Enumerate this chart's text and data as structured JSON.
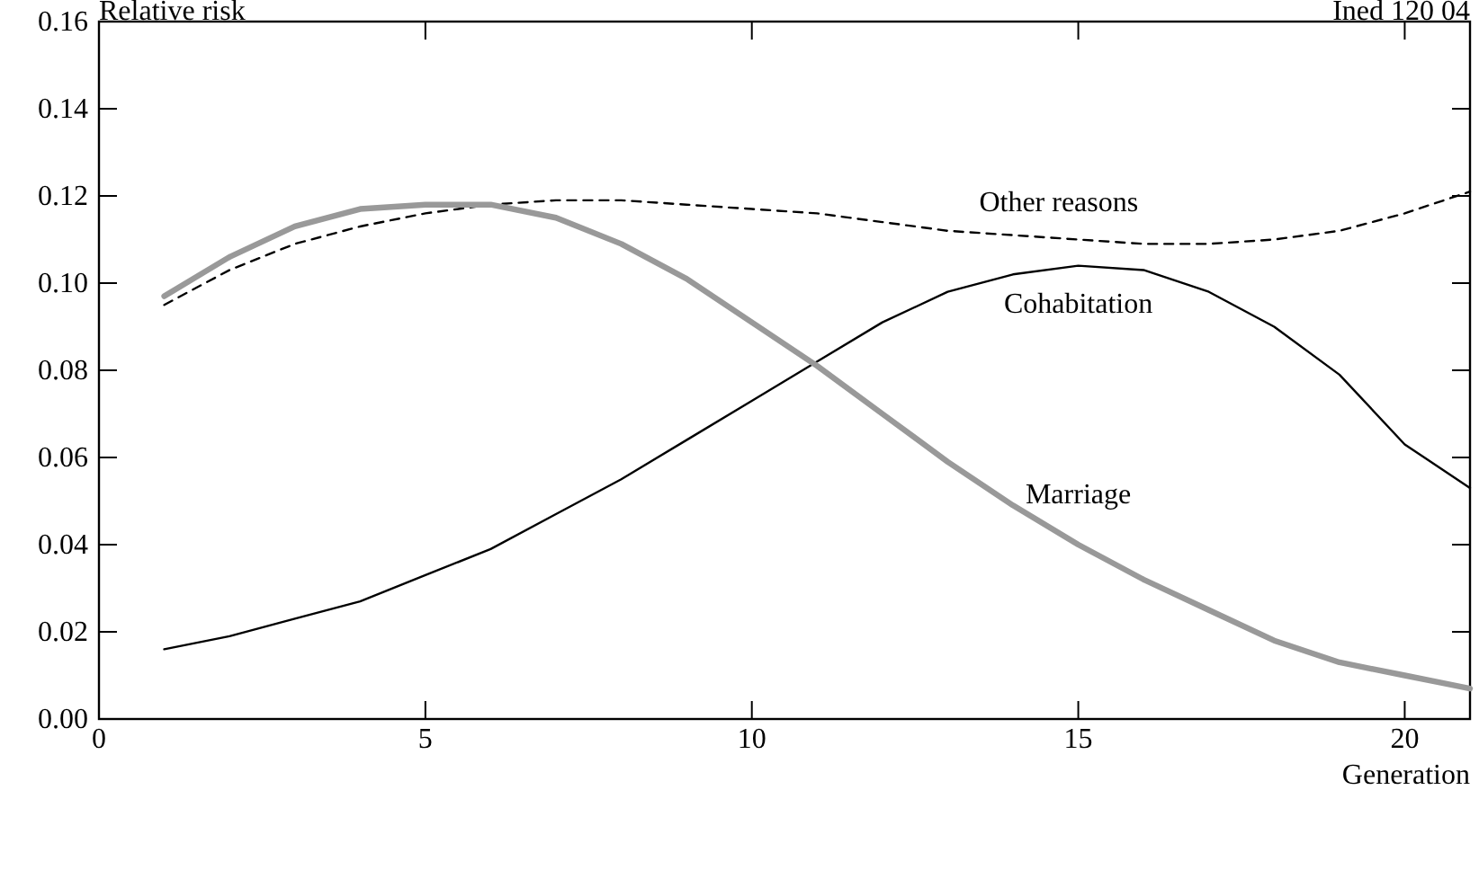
{
  "chart_data": {
    "type": "line",
    "xlabel": "Generation",
    "ylabel": "Relative risk",
    "annotations": [
      "Ined 120 04"
    ],
    "x": [
      1,
      2,
      3,
      4,
      5,
      6,
      7,
      8,
      9,
      10,
      11,
      12,
      13,
      14,
      15,
      16,
      17,
      18,
      19,
      20,
      21
    ],
    "xlim": [
      0,
      21
    ],
    "xticks": [
      0,
      5,
      10,
      15,
      20
    ],
    "ylim": [
      0,
      0.16
    ],
    "yticks": [
      {
        "value": 0,
        "label": "0.00"
      },
      {
        "value": 0.02,
        "label": "0.02"
      },
      {
        "value": 0.04,
        "label": "0.04"
      },
      {
        "value": 0.06,
        "label": "0.06"
      },
      {
        "value": 0.08,
        "label": "0.08"
      },
      {
        "value": 0.1,
        "label": "0.10"
      },
      {
        "value": 0.12,
        "label": "0.12"
      },
      {
        "value": 0.14,
        "label": "0.14"
      },
      {
        "value": 0.16,
        "label": "0.16"
      }
    ],
    "grid": false,
    "marker": "none",
    "series": [
      {
        "name": "Other reasons",
        "color": "#000000",
        "line_style": "dashed",
        "values": [
          0.095,
          0.103,
          0.109,
          0.113,
          0.116,
          0.118,
          0.119,
          0.119,
          0.118,
          0.117,
          0.116,
          0.114,
          0.112,
          0.111,
          0.11,
          0.109,
          0.109,
          0.11,
          0.112,
          0.116,
          0.121
        ]
      },
      {
        "name": "Cohabitation",
        "color": "#000000",
        "line_style": "solid",
        "values": [
          0.016,
          0.019,
          0.023,
          0.027,
          0.033,
          0.039,
          0.047,
          0.055,
          0.064,
          0.073,
          0.082,
          0.091,
          0.098,
          0.102,
          0.104,
          0.103,
          0.098,
          0.09,
          0.079,
          0.063,
          0.053
        ]
      },
      {
        "name": "Marriage",
        "color": "#999999",
        "line_style": "solid",
        "values": [
          0.097,
          0.106,
          0.113,
          0.117,
          0.118,
          0.118,
          0.115,
          0.109,
          0.101,
          0.091,
          0.081,
          0.07,
          0.059,
          0.049,
          0.04,
          0.032,
          0.025,
          0.018,
          0.013,
          0.01,
          0.007
        ]
      }
    ]
  }
}
